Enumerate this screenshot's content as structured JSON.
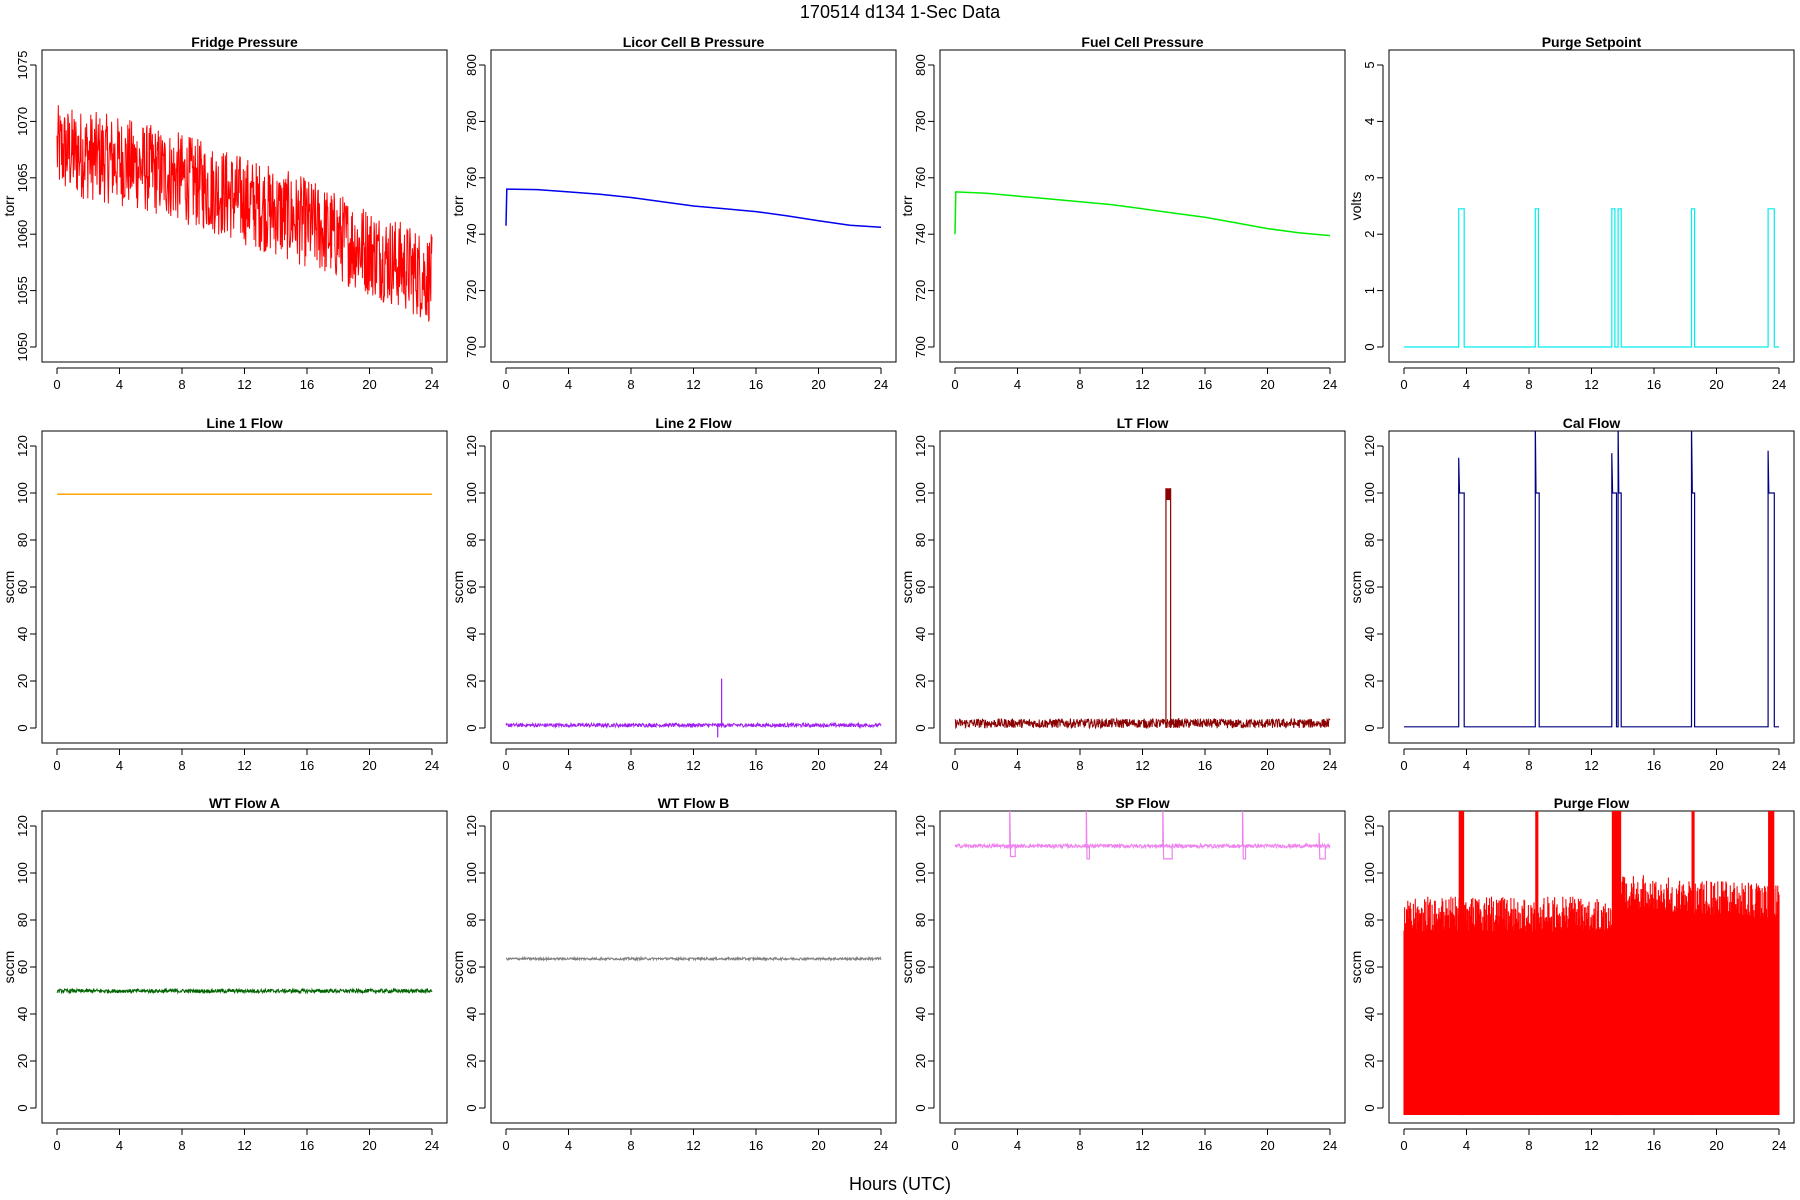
{
  "figure": {
    "suptitle": "170514   d134   1-Sec Data",
    "xlabel": "Hours (UTC)"
  },
  "colors": {
    "red": "#ff0000",
    "blue": "#0000ee",
    "green": "#00ee00",
    "cyan": "#00eeee",
    "orange": "#ffa500",
    "purple": "#a020f0",
    "darkred": "#8b0000",
    "navy": "#000080",
    "darkgreen": "#006400",
    "gray": "#808080",
    "violet": "#ee82ee"
  },
  "chart_data": [
    {
      "type": "line",
      "title": "Fridge Pressure",
      "xlabel": "",
      "ylabel": "torr",
      "xlim": [
        0,
        24
      ],
      "ylim": [
        1050,
        1075
      ],
      "xticks": [
        0,
        4,
        8,
        12,
        16,
        20,
        24
      ],
      "yticks": [
        1050,
        1055,
        1060,
        1065,
        1070,
        1075
      ],
      "grid": false,
      "color": "red",
      "style": "noise_band",
      "series": [
        {
          "x": [
            0,
            4,
            8,
            12,
            16,
            20,
            24
          ],
          "center": [
            1067.5,
            1066.5,
            1065,
            1063,
            1061,
            1058.5,
            1056
          ],
          "spread": [
            4,
            4,
            4,
            4,
            4,
            4,
            4
          ]
        }
      ]
    },
    {
      "type": "line",
      "title": "Licor Cell B Pressure",
      "xlabel": "",
      "ylabel": "torr",
      "xlim": [
        0,
        24
      ],
      "ylim": [
        700,
        800
      ],
      "xticks": [
        0,
        4,
        8,
        12,
        16,
        20,
        24
      ],
      "yticks": [
        700,
        720,
        740,
        760,
        780,
        800
      ],
      "grid": false,
      "color": "blue",
      "series": [
        {
          "x": [
            0,
            0.05,
            2,
            4,
            6,
            8,
            10,
            12,
            14,
            16,
            18,
            20,
            22,
            24
          ],
          "y": [
            743,
            756,
            755.8,
            755,
            754.2,
            753,
            751.5,
            750,
            749,
            748,
            746.5,
            744.8,
            743.2,
            742.5
          ]
        }
      ]
    },
    {
      "type": "line",
      "title": "Fuel Cell Pressure",
      "xlabel": "",
      "ylabel": "torr",
      "xlim": [
        0,
        24
      ],
      "ylim": [
        700,
        800
      ],
      "xticks": [
        0,
        4,
        8,
        12,
        16,
        20,
        24
      ],
      "yticks": [
        700,
        720,
        740,
        760,
        780,
        800
      ],
      "grid": false,
      "color": "green",
      "series": [
        {
          "x": [
            0,
            0.05,
            2,
            4,
            6,
            8,
            10,
            12,
            14,
            16,
            18,
            20,
            22,
            24
          ],
          "y": [
            740,
            755,
            754.5,
            753.5,
            752.5,
            751.5,
            750.5,
            749,
            747.5,
            746,
            744,
            742,
            740.5,
            739.5
          ]
        }
      ]
    },
    {
      "type": "line",
      "title": "Purge Setpoint",
      "xlabel": "",
      "ylabel": "volts",
      "xlim": [
        0,
        24
      ],
      "ylim": [
        0,
        5
      ],
      "xticks": [
        0,
        4,
        8,
        12,
        16,
        20,
        24
      ],
      "yticks": [
        0,
        1,
        2,
        3,
        4,
        5
      ],
      "grid": false,
      "color": "cyan",
      "style": "pulses",
      "baseline": 0,
      "level": 2.45,
      "pulses": [
        [
          3.5,
          3.85
        ],
        [
          8.4,
          8.6
        ],
        [
          13.3,
          13.5
        ],
        [
          13.7,
          13.9
        ],
        [
          18.4,
          18.6
        ],
        [
          23.3,
          23.7
        ]
      ]
    },
    {
      "type": "line",
      "title": "Line 1 Flow",
      "xlabel": "",
      "ylabel": "sccm",
      "xlim": [
        0,
        24
      ],
      "ylim": [
        0,
        120
      ],
      "xticks": [
        0,
        4,
        8,
        12,
        16,
        20,
        24
      ],
      "yticks": [
        0,
        20,
        40,
        60,
        80,
        100,
        120
      ],
      "grid": false,
      "color": "orange",
      "series": [
        {
          "x": [
            0,
            24
          ],
          "y": [
            99.5,
            99.5
          ]
        }
      ]
    },
    {
      "type": "line",
      "title": "Line 2 Flow",
      "xlabel": "",
      "ylabel": "sccm",
      "xlim": [
        0,
        24
      ],
      "ylim": [
        0,
        120
      ],
      "xticks": [
        0,
        4,
        8,
        12,
        16,
        20,
        24
      ],
      "yticks": [
        0,
        20,
        40,
        60,
        80,
        100,
        120
      ],
      "grid": false,
      "color": "purple",
      "style": "noise_band",
      "series": [
        {
          "x": [
            0,
            24
          ],
          "center": [
            1.2,
            1.2
          ],
          "spread": [
            0.8,
            0.8
          ]
        }
      ],
      "spikes": [
        {
          "x": 13.8,
          "y": 21
        },
        {
          "x": 13.55,
          "y": -4
        }
      ]
    },
    {
      "type": "line",
      "title": "LT Flow",
      "xlabel": "",
      "ylabel": "sccm",
      "xlim": [
        0,
        24
      ],
      "ylim": [
        0,
        120
      ],
      "xticks": [
        0,
        4,
        8,
        12,
        16,
        20,
        24
      ],
      "yticks": [
        0,
        20,
        40,
        60,
        80,
        100,
        120
      ],
      "grid": false,
      "color": "darkred",
      "style": "noise_band",
      "series": [
        {
          "x": [
            0,
            13.5,
            13.8,
            16,
            17.5,
            24
          ],
          "center": [
            2,
            2,
            2,
            2,
            1.8,
            2
          ],
          "spread": [
            2,
            2,
            2,
            2,
            2,
            2
          ]
        }
      ],
      "pulse_block": {
        "x0": 13.5,
        "x1": 13.8,
        "top": 102,
        "bottom": 97
      }
    },
    {
      "type": "line",
      "title": "Cal Flow",
      "xlabel": "",
      "ylabel": "sccm",
      "xlim": [
        0,
        24
      ],
      "ylim": [
        0,
        120
      ],
      "xticks": [
        0,
        4,
        8,
        12,
        16,
        20,
        24
      ],
      "yticks": [
        0,
        20,
        40,
        60,
        80,
        100,
        120
      ],
      "grid": false,
      "color": "navy",
      "style": "pulses",
      "baseline": 0.5,
      "level": 100,
      "pulses": [
        [
          3.5,
          3.85
        ],
        [
          8.4,
          8.65
        ],
        [
          13.3,
          13.6
        ],
        [
          13.7,
          13.9
        ],
        [
          18.4,
          18.6
        ],
        [
          23.3,
          23.7
        ]
      ],
      "peaks": [
        115,
        130,
        117,
        130,
        130,
        118
      ]
    },
    {
      "type": "line",
      "title": "WT Flow A",
      "xlabel": "",
      "ylabel": "sccm",
      "xlim": [
        0,
        24
      ],
      "ylim": [
        0,
        120
      ],
      "xticks": [
        0,
        4,
        8,
        12,
        16,
        20,
        24
      ],
      "yticks": [
        0,
        20,
        40,
        60,
        80,
        100,
        120
      ],
      "grid": false,
      "color": "darkgreen",
      "style": "noise_band",
      "series": [
        {
          "x": [
            0,
            24
          ],
          "center": [
            49.8,
            49.8
          ],
          "spread": [
            0.8,
            0.8
          ]
        }
      ]
    },
    {
      "type": "line",
      "title": "WT Flow B",
      "xlabel": "",
      "ylabel": "sccm",
      "xlim": [
        0,
        24
      ],
      "ylim": [
        0,
        120
      ],
      "xticks": [
        0,
        4,
        8,
        12,
        16,
        20,
        24
      ],
      "yticks": [
        0,
        20,
        40,
        60,
        80,
        100,
        120
      ],
      "grid": false,
      "color": "gray",
      "style": "noise_band",
      "series": [
        {
          "x": [
            0,
            24
          ],
          "center": [
            63.5,
            63.5
          ],
          "spread": [
            0.5,
            0.5
          ]
        }
      ]
    },
    {
      "type": "line",
      "title": "SP Flow",
      "xlabel": "",
      "ylabel": "sccm",
      "xlim": [
        0,
        24
      ],
      "ylim": [
        0,
        120
      ],
      "xticks": [
        0,
        4,
        8,
        12,
        16,
        20,
        24
      ],
      "yticks": [
        0,
        20,
        40,
        60,
        80,
        100,
        120
      ],
      "grid": false,
      "color": "violet",
      "style": "noise_band",
      "series": [
        {
          "x": [
            0,
            24
          ],
          "center": [
            111.5,
            111.5
          ],
          "spread": [
            0.8,
            0.8
          ]
        }
      ],
      "dips": [
        {
          "x0": 3.5,
          "x1": 3.85,
          "y": 107,
          "peak": 130
        },
        {
          "x0": 8.4,
          "x1": 8.6,
          "y": 106,
          "peak": 130
        },
        {
          "x0": 13.3,
          "x1": 13.9,
          "y": 106,
          "peak": 130
        },
        {
          "x0": 18.4,
          "x1": 18.6,
          "y": 106,
          "peak": 130
        },
        {
          "x0": 23.3,
          "x1": 23.7,
          "y": 106,
          "peak": 117
        }
      ]
    },
    {
      "type": "line",
      "title": "Purge Flow",
      "xlabel": "",
      "ylabel": "sccm",
      "xlim": [
        0,
        24
      ],
      "ylim": [
        0,
        120
      ],
      "xticks": [
        0,
        4,
        8,
        12,
        16,
        20,
        24
      ],
      "yticks": [
        0,
        20,
        40,
        60,
        80,
        100,
        120
      ],
      "grid": false,
      "color": "red",
      "style": "noise_fill",
      "series": [
        {
          "x": [
            0,
            13.4,
            13.5,
            24
          ],
          "upper": [
            90,
            90,
            100,
            95
          ],
          "spread": [
            15,
            15,
            15,
            15
          ]
        }
      ],
      "floor": -3,
      "peaks": [
        [
          3.5,
          3.85
        ],
        [
          8.4,
          8.6
        ],
        [
          13.3,
          13.9
        ],
        [
          18.4,
          18.6
        ],
        [
          23.3,
          23.7
        ]
      ]
    }
  ]
}
